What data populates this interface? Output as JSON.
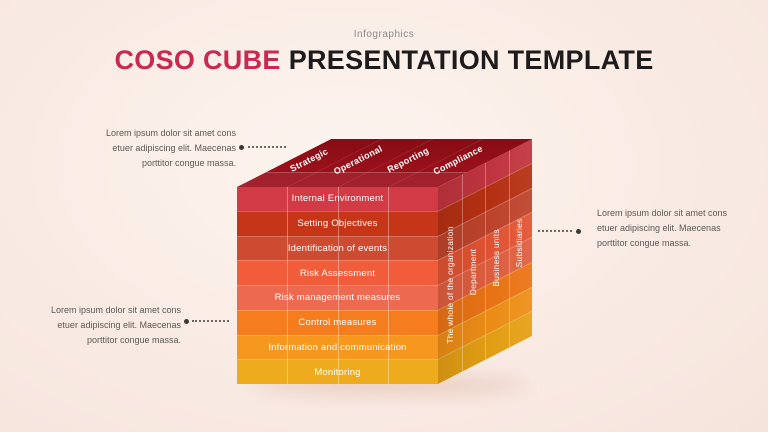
{
  "header": {
    "eyebrow": "Infographics",
    "title_accent": "COSO CUBE",
    "title_rest": "PRESENTATION TEMPLATE",
    "accent_color": "#c92950",
    "title_color": "#1d1b1b"
  },
  "cube": {
    "top_labels": [
      "Strategic",
      "Operational",
      "Reporting",
      "Compliance"
    ],
    "top_face_color": "#9a0f1a",
    "rows": [
      {
        "label": "Internal Environment",
        "front": "#d23b46",
        "side": "#c2353f"
      },
      {
        "label": "Setting Objectives",
        "front": "#c63517",
        "side": "#b73113"
      },
      {
        "label": "Identification of events",
        "front": "#cd4b31",
        "side": "#bf442c"
      },
      {
        "label": "Risk Assessment",
        "front": "#f15d3a",
        "side": "#e25433"
      },
      {
        "label": "Risk management measures",
        "front": "#ed6950",
        "side": "#e05f40"
      },
      {
        "label": "Control measures",
        "front": "#f57d1e",
        "side": "#ec7415"
      },
      {
        "label": "Information and communication",
        "front": "#f7981e",
        "side": "#ef8e16"
      },
      {
        "label": "Monitoring",
        "front": "#edab1d",
        "side": "#e6a014"
      }
    ],
    "side_labels": [
      "The whole of the organization",
      "Department",
      "Business units",
      "Subsidiaries"
    ]
  },
  "callouts": {
    "left_top": {
      "text": "Lorem ipsum dolor sit amet cons\netuer adipiscing elit. Maecenas\nporttitor congue massa."
    },
    "right": {
      "text": "Lorem ipsum dolor sit amet cons\netuer adipiscing elit. Maecenas\nporttitor congue massa."
    },
    "left_bottom": {
      "text": "Lorem ipsum dolor sit amet cons\netuer adipiscing elit. Maecenas\nporttitor congue massa."
    }
  }
}
